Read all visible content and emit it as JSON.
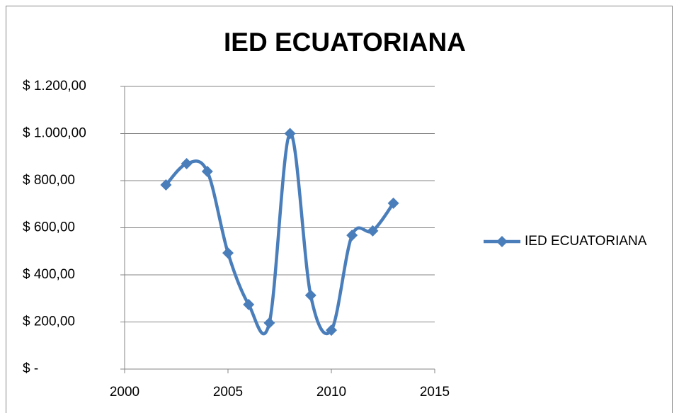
{
  "chart_data": {
    "type": "scatter-smooth",
    "title": "IED ECUATORIANA",
    "x": [
      2002,
      2003,
      2004,
      2005,
      2006,
      2007,
      2008,
      2009,
      2010,
      2011,
      2012,
      2013
    ],
    "series": [
      {
        "name": "IED ECUATORIANA",
        "color": "#4a7ebb",
        "values": [
          782,
          872,
          839,
          493,
          274,
          196,
          1000,
          313,
          165,
          568,
          587,
          704
        ]
      }
    ],
    "xlim": [
      2000,
      2015
    ],
    "xticks": [
      2000,
      2005,
      2010,
      2015
    ],
    "ylim": [
      0,
      1200
    ],
    "yticks": [
      {
        "value": 0,
        "label": "$ -"
      },
      {
        "value": 200,
        "label": "$ 200,00"
      },
      {
        "value": 400,
        "label": "$ 400,00"
      },
      {
        "value": 600,
        "label": "$ 600,00"
      },
      {
        "value": 800,
        "label": "$ 800,00"
      },
      {
        "value": 1000,
        "label": "$ 1.000,00"
      },
      {
        "value": 1200,
        "label": "$ 1.200,00"
      }
    ],
    "grid": true,
    "legend": "right"
  }
}
